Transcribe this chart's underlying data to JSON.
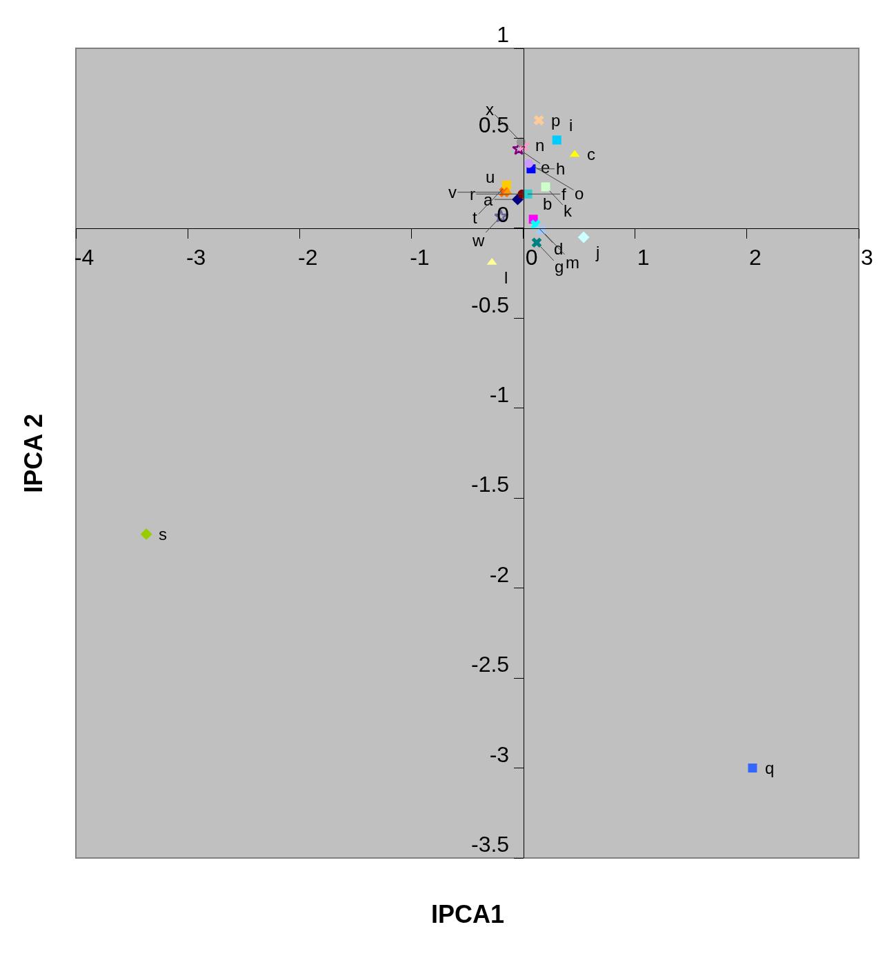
{
  "chart_data": {
    "type": "scatter",
    "xlabel": "IPCA1",
    "ylabel": "IPCA 2",
    "xlim": [
      -4,
      3
    ],
    "ylim": [
      -3.5,
      1
    ],
    "xticks": [
      -4,
      -3,
      -2,
      -1,
      0,
      1,
      2,
      3
    ],
    "yticks": [
      1,
      0.5,
      0,
      -0.5,
      -1,
      -1.5,
      -2,
      -2.5,
      -3,
      -3.5
    ],
    "grid": false,
    "legend": false,
    "series": [
      {
        "name": "a",
        "color": "#000080",
        "marker": "diamond",
        "x": [
          -0.05
        ],
        "values": [
          0.16
        ]
      },
      {
        "name": "b",
        "color": "#ff00ff",
        "marker": "square",
        "x": [
          0.09
        ],
        "values": [
          0.05
        ]
      },
      {
        "name": "c",
        "color": "#ffff00",
        "marker": "triangle",
        "x": [
          0.46
        ],
        "values": [
          0.41
        ]
      },
      {
        "name": "d",
        "color": "#00ffff",
        "marker": "cross",
        "x": [
          0.11
        ],
        "values": [
          0.02
        ]
      },
      {
        "name": "e",
        "color": "#800080",
        "marker": "star",
        "x": [
          -0.04
        ],
        "values": [
          0.44
        ]
      },
      {
        "name": "f",
        "color": "#800000",
        "marker": "circle",
        "x": [
          -0.01
        ],
        "values": [
          0.19
        ]
      },
      {
        "name": "g",
        "color": "#008080",
        "marker": "cross",
        "x": [
          0.12
        ],
        "values": [
          -0.08
        ]
      },
      {
        "name": "h",
        "color": "#0000ff",
        "marker": "square",
        "x": [
          0.07
        ],
        "values": [
          0.33
        ]
      },
      {
        "name": "i",
        "color": "#00ccff",
        "marker": "square",
        "x": [
          0.3
        ],
        "values": [
          0.49
        ]
      },
      {
        "name": "j",
        "color": "#ccffff",
        "marker": "diamond",
        "x": [
          0.54
        ],
        "values": [
          -0.05
        ]
      },
      {
        "name": "k",
        "color": "#ccffcc",
        "marker": "square",
        "x": [
          0.2
        ],
        "values": [
          0.23
        ]
      },
      {
        "name": "l",
        "color": "#ffff99",
        "marker": "triangle",
        "x": [
          -0.28
        ],
        "values": [
          -0.19
        ]
      },
      {
        "name": "m",
        "color": "#99ccff",
        "marker": "cross",
        "x": [
          0.16
        ],
        "values": [
          -0.01
        ]
      },
      {
        "name": "n",
        "color": "#ff99cc",
        "marker": "star",
        "x": [
          0.0
        ],
        "values": [
          0.46
        ]
      },
      {
        "name": "o",
        "color": "#cc99ff",
        "marker": "circle",
        "x": [
          0.05
        ],
        "values": [
          0.36
        ]
      },
      {
        "name": "p",
        "color": "#ffcc99",
        "marker": "cross",
        "x": [
          0.14
        ],
        "values": [
          0.6
        ]
      },
      {
        "name": "q",
        "color": "#3366ff",
        "marker": "square",
        "x": [
          2.05
        ],
        "values": [
          -3.0
        ]
      },
      {
        "name": "r",
        "color": "#33cccc",
        "marker": "square",
        "x": [
          0.04
        ],
        "values": [
          0.19
        ]
      },
      {
        "name": "s",
        "color": "#99cc00",
        "marker": "diamond",
        "x": [
          -3.37
        ],
        "values": [
          -1.7
        ]
      },
      {
        "name": "t",
        "color": "#ffcc00",
        "marker": "square",
        "x": [
          -0.15
        ],
        "values": [
          0.24
        ]
      },
      {
        "name": "u",
        "color": "#ff6600",
        "marker": "cross",
        "x": [
          -0.17
        ],
        "values": [
          0.2
        ]
      },
      {
        "name": "v",
        "color": "#ff9900",
        "marker": "triangle",
        "x": [
          -0.14
        ],
        "values": [
          0.2
        ]
      },
      {
        "name": "w",
        "color": "#666699",
        "marker": "star",
        "x": [
          -0.2
        ],
        "values": [
          0.065
        ]
      },
      {
        "name": "x",
        "color": "#969696",
        "marker": "circle",
        "x": [
          -0.02
        ],
        "values": [
          0.48
        ]
      }
    ]
  }
}
